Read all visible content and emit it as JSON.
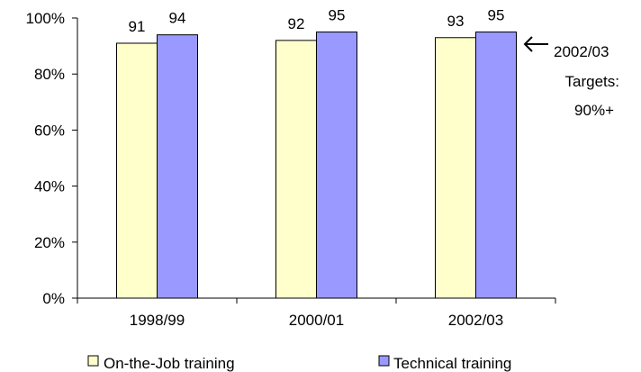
{
  "chart_data": {
    "type": "bar",
    "categories": [
      "1998/99",
      "2000/01",
      "2002/03"
    ],
    "series": [
      {
        "name": "On-the-Job training",
        "values": [
          91,
          92,
          93
        ],
        "color": "#ffffcc"
      },
      {
        "name": "Technical training",
        "values": [
          94,
          95,
          95
        ],
        "color": "#9999ff"
      }
    ],
    "data_labels": [
      [
        "91",
        "92",
        "93"
      ],
      [
        "94",
        "95",
        "95"
      ]
    ],
    "ylim": [
      0,
      100
    ],
    "yticks": [
      0,
      20,
      40,
      60,
      80,
      100
    ],
    "ytick_labels": [
      "0%",
      "20%",
      "40%",
      "60%",
      "80%",
      "100%"
    ],
    "title": "",
    "xlabel": "",
    "ylabel": "",
    "grid": false,
    "legend_position": "bottom",
    "annotation": {
      "arrow_icon": "left-arrow-icon",
      "lines": [
        "2002/03",
        "Targets:",
        "90%+"
      ]
    }
  }
}
